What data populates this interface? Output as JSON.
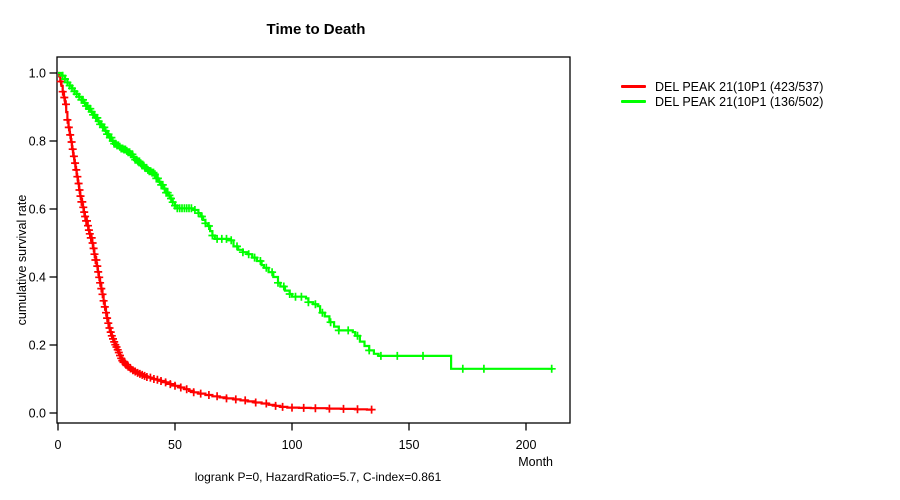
{
  "figure": {
    "title": "Time to Death",
    "caption": "logrank P=0, HazardRatio=5.7, C-index=0.861"
  },
  "axes": {
    "x_label": "Month",
    "y_label": "cumulative survival rate",
    "x_ticks": [
      "0",
      "50",
      "100",
      "150",
      "200"
    ],
    "y_ticks": [
      "0.0",
      "0.2",
      "0.4",
      "0.6",
      "0.8",
      "1.0"
    ]
  },
  "legend": {
    "items": [
      {
        "label": "DEL PEAK 21(10P1 (423/537)",
        "color": "#ff0000"
      },
      {
        "label": "DEL PEAK 21(10P1 (136/502)",
        "color": "#00ff00"
      }
    ]
  },
  "chart_data": {
    "type": "line",
    "subtype": "kaplan-meier-step-survival",
    "title": "Time to Death",
    "xlabel": "Month",
    "ylabel": "cumulative survival rate",
    "annotation": "logrank P=0, HazardRatio=5.7, C-index=0.861",
    "xlim": [
      0,
      219
    ],
    "ylim": [
      0,
      1.05
    ],
    "grid": false,
    "legend_position": "right-outside",
    "x_ticks": [
      "0",
      "50",
      "100",
      "150",
      "200"
    ],
    "y_ticks": [
      "0.0",
      "0.2",
      "0.4",
      "0.6",
      "0.8",
      "1.0"
    ],
    "series": [
      {
        "name": "DEL PEAK 21(10P1 (423/537)",
        "color": "#ff0000",
        "end_month": 134.5,
        "points": [
          [
            0,
            1.0
          ],
          [
            0.5,
            0.99
          ],
          [
            1,
            0.975
          ],
          [
            1.5,
            0.962
          ],
          [
            2,
            0.945
          ],
          [
            2.5,
            0.928
          ],
          [
            3,
            0.908
          ],
          [
            3.5,
            0.885
          ],
          [
            4,
            0.862
          ],
          [
            4.5,
            0.84
          ],
          [
            5,
            0.818
          ],
          [
            5.5,
            0.797
          ],
          [
            6,
            0.776
          ],
          [
            6.5,
            0.755
          ],
          [
            7,
            0.735
          ],
          [
            7.5,
            0.715
          ],
          [
            8,
            0.695
          ],
          [
            8.5,
            0.675
          ],
          [
            9,
            0.656
          ],
          [
            9.5,
            0.638
          ],
          [
            10,
            0.621
          ],
          [
            10.5,
            0.605
          ],
          [
            11,
            0.591
          ],
          [
            11.5,
            0.578
          ],
          [
            12,
            0.565
          ],
          [
            12.5,
            0.551
          ],
          [
            13,
            0.538
          ],
          [
            13.5,
            0.527
          ],
          [
            14,
            0.515
          ],
          [
            14.5,
            0.5
          ],
          [
            15,
            0.484
          ],
          [
            15.5,
            0.467
          ],
          [
            16,
            0.45
          ],
          [
            16.5,
            0.432
          ],
          [
            17,
            0.415
          ],
          [
            17.5,
            0.399
          ],
          [
            18,
            0.383
          ],
          [
            18.5,
            0.366
          ],
          [
            19,
            0.349
          ],
          [
            19.5,
            0.33
          ],
          [
            20,
            0.312
          ],
          [
            20.5,
            0.295
          ],
          [
            21,
            0.279
          ],
          [
            21.5,
            0.264
          ],
          [
            22,
            0.25
          ],
          [
            22.5,
            0.238
          ],
          [
            23,
            0.227
          ],
          [
            23.5,
            0.218
          ],
          [
            24,
            0.209
          ],
          [
            24.5,
            0.201
          ],
          [
            25,
            0.194
          ],
          [
            25.5,
            0.186
          ],
          [
            26,
            0.178
          ],
          [
            26.5,
            0.169
          ],
          [
            27,
            0.161
          ],
          [
            27.5,
            0.154
          ],
          [
            28,
            0.149
          ],
          [
            29,
            0.142
          ],
          [
            30,
            0.136
          ],
          [
            31,
            0.131
          ],
          [
            32,
            0.126
          ],
          [
            33,
            0.122
          ],
          [
            34,
            0.118
          ],
          [
            35,
            0.115
          ],
          [
            36,
            0.112
          ],
          [
            37,
            0.109
          ],
          [
            38,
            0.106
          ],
          [
            39,
            0.104
          ],
          [
            40,
            0.102
          ],
          [
            41,
            0.1
          ],
          [
            42,
            0.098
          ],
          [
            44,
            0.094
          ],
          [
            46,
            0.09
          ],
          [
            48,
            0.085
          ],
          [
            50,
            0.08
          ],
          [
            52,
            0.075
          ],
          [
            54,
            0.07
          ],
          [
            56,
            0.065
          ],
          [
            58,
            0.061
          ],
          [
            60,
            0.057
          ],
          [
            63,
            0.053
          ],
          [
            66,
            0.049
          ],
          [
            69,
            0.046
          ],
          [
            72,
            0.043
          ],
          [
            75,
            0.04
          ],
          [
            78,
            0.037
          ],
          [
            81,
            0.034
          ],
          [
            84,
            0.031
          ],
          [
            87,
            0.028
          ],
          [
            90,
            0.024
          ],
          [
            93,
            0.021
          ],
          [
            95,
            0.018
          ],
          [
            98,
            0.016
          ],
          [
            103,
            0.015
          ],
          [
            108,
            0.014
          ],
          [
            115,
            0.013
          ],
          [
            121,
            0.012
          ],
          [
            127,
            0.011
          ],
          [
            132,
            0.01
          ]
        ],
        "censor_months": [
          1.2,
          2,
          2.7,
          3.4,
          4,
          4.6,
          5.2,
          5.8,
          6.3,
          6.8,
          7.3,
          7.8,
          8.3,
          8.8,
          9.2,
          9.6,
          10,
          10.4,
          10.8,
          11.2,
          11.6,
          12,
          12.4,
          12.8,
          13.2,
          13.6,
          14,
          14.4,
          14.8,
          15.2,
          15.6,
          16,
          16.4,
          16.8,
          17.2,
          17.6,
          18,
          18.5,
          19,
          19.5,
          20,
          20.5,
          21,
          21.5,
          22,
          22.5,
          23,
          23.5,
          24,
          24.5,
          25,
          25.5,
          26,
          26.5,
          27,
          27.5,
          28,
          28.5,
          29,
          29.5,
          30,
          31,
          32,
          33,
          34,
          35,
          36,
          37,
          38,
          39.5,
          41,
          42.5,
          44,
          46,
          48,
          50,
          52.5,
          55,
          58,
          61,
          64.5,
          68,
          72,
          76,
          80,
          84.5,
          89,
          93,
          96,
          100,
          105,
          110,
          116,
          122,
          128,
          134
        ]
      },
      {
        "name": "DEL PEAK 21(10P1 (136/502)",
        "color": "#00ff00",
        "end_month": 211.5,
        "points": [
          [
            0,
            1.0
          ],
          [
            1.5,
            0.992
          ],
          [
            3,
            0.982
          ],
          [
            4,
            0.972
          ],
          [
            5,
            0.963
          ],
          [
            6,
            0.955
          ],
          [
            7,
            0.946
          ],
          [
            8,
            0.938
          ],
          [
            9,
            0.93
          ],
          [
            10,
            0.921
          ],
          [
            11,
            0.912
          ],
          [
            12,
            0.903
          ],
          [
            13,
            0.895
          ],
          [
            14,
            0.886
          ],
          [
            15,
            0.877
          ],
          [
            16,
            0.868
          ],
          [
            17,
            0.858
          ],
          [
            18,
            0.849
          ],
          [
            19,
            0.84
          ],
          [
            20,
            0.83
          ],
          [
            21,
            0.82
          ],
          [
            22,
            0.81
          ],
          [
            23,
            0.8
          ],
          [
            24,
            0.792
          ],
          [
            25,
            0.787
          ],
          [
            26,
            0.783
          ],
          [
            27,
            0.778
          ],
          [
            28,
            0.775
          ],
          [
            29,
            0.771
          ],
          [
            30,
            0.767
          ],
          [
            31,
            0.761
          ],
          [
            32,
            0.752
          ],
          [
            33,
            0.745
          ],
          [
            34,
            0.74
          ],
          [
            35,
            0.734
          ],
          [
            36,
            0.728
          ],
          [
            37,
            0.721
          ],
          [
            38,
            0.715
          ],
          [
            39,
            0.711
          ],
          [
            40,
            0.707
          ],
          [
            41,
            0.702
          ],
          [
            42,
            0.69
          ],
          [
            43,
            0.68
          ],
          [
            44,
            0.671
          ],
          [
            45,
            0.66
          ],
          [
            46,
            0.648
          ],
          [
            47,
            0.64
          ],
          [
            48,
            0.631
          ],
          [
            49,
            0.62
          ],
          [
            50,
            0.61
          ],
          [
            51,
            0.602
          ],
          [
            58,
            0.597
          ],
          [
            60,
            0.588
          ],
          [
            61,
            0.578
          ],
          [
            62,
            0.568
          ],
          [
            63,
            0.558
          ],
          [
            64,
            0.55
          ],
          [
            65,
            0.535
          ],
          [
            66,
            0.522
          ],
          [
            67,
            0.512
          ],
          [
            73,
            0.508
          ],
          [
            75,
            0.49
          ],
          [
            77,
            0.48
          ],
          [
            79,
            0.473
          ],
          [
            81,
            0.467
          ],
          [
            83,
            0.457
          ],
          [
            85,
            0.447
          ],
          [
            87,
            0.435
          ],
          [
            88,
            0.427
          ],
          [
            90,
            0.414
          ],
          [
            92,
            0.4
          ],
          [
            94,
            0.383
          ],
          [
            95,
            0.372
          ],
          [
            97,
            0.36
          ],
          [
            99,
            0.35
          ],
          [
            100,
            0.342
          ],
          [
            106,
            0.337
          ],
          [
            107,
            0.326
          ],
          [
            109,
            0.32
          ],
          [
            111,
            0.314
          ],
          [
            112,
            0.295
          ],
          [
            114,
            0.284
          ],
          [
            116,
            0.267
          ],
          [
            118,
            0.254
          ],
          [
            120,
            0.243
          ],
          [
            126,
            0.238
          ],
          [
            127,
            0.227
          ],
          [
            129,
            0.21
          ],
          [
            131,
            0.197
          ],
          [
            133,
            0.184
          ],
          [
            135,
            0.174
          ],
          [
            137,
            0.168
          ],
          [
            168,
            0.13
          ]
        ],
        "censor_months": [
          2,
          3,
          4,
          5,
          6,
          7,
          8,
          9,
          10,
          10.7,
          11.4,
          12,
          12.6,
          13.2,
          13.8,
          14.4,
          15,
          15.6,
          16.2,
          16.8,
          17.4,
          18,
          18.6,
          19.2,
          19.8,
          20.4,
          21,
          21.6,
          22.2,
          22.8,
          23.4,
          24,
          24.6,
          25.2,
          25.8,
          26.4,
          27,
          27.6,
          28.2,
          28.8,
          29.4,
          30,
          30.6,
          31.2,
          31.8,
          32.4,
          33,
          33.6,
          34.2,
          34.8,
          35.4,
          36,
          36.6,
          37.2,
          37.8,
          38.4,
          39,
          39.6,
          40.2,
          40.8,
          41.4,
          42,
          42.7,
          43.4,
          44.1,
          44.8,
          45.5,
          46.2,
          46.9,
          47.6,
          48.3,
          49,
          50,
          51,
          52,
          53,
          54,
          55,
          56,
          57,
          58.5,
          60,
          61.5,
          63,
          64.5,
          66,
          68,
          70,
          72,
          74,
          76.5,
          79,
          81.5,
          84,
          86.5,
          89,
          91.5,
          94,
          96.5,
          99,
          101.5,
          104,
          107,
          110,
          113,
          116.5,
          120,
          124,
          128,
          133,
          138,
          145,
          156,
          173,
          182,
          211
        ]
      }
    ]
  }
}
